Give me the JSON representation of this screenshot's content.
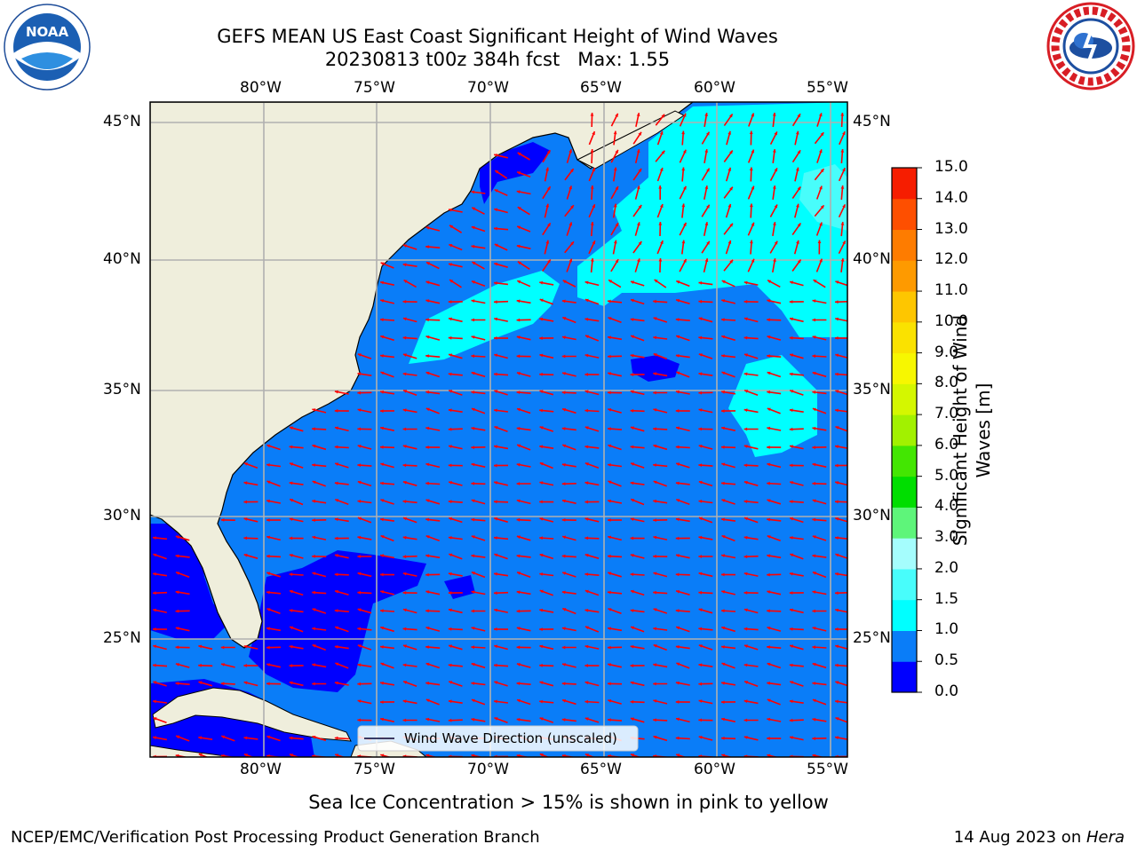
{
  "title": {
    "line1": "GEFS MEAN US East Coast Significant Height of Wind Waves",
    "line2": "20230813 t00z 384h fcst   Max: 1.55"
  },
  "logos": {
    "left": "NOAA",
    "right": "NATIONAL WEATHER SERVICE"
  },
  "map": {
    "lon_ticks": [
      "80°W",
      "75°W",
      "70°W",
      "65°W",
      "60°W",
      "55°W"
    ],
    "lat_ticks": [
      "45°N",
      "40°N",
      "35°N",
      "30°N",
      "25°N"
    ],
    "legend_label": "Wind Wave Direction (unscaled)",
    "colors": {
      "land": "#efeedc",
      "ocean_0_05": "#0000ff",
      "ocean_05_1": "#0a7df8",
      "ocean_1_15": "#00ffff",
      "ocean_15_2": "#48fdfb",
      "arrow": "#ff0000",
      "grid": "#b0b0b0"
    }
  },
  "colorbar": {
    "label_line1": "Significant Height of Wind",
    "label_line2": "Waves [m]",
    "ticks": [
      "0.0",
      "0.5",
      "1.0",
      "1.5",
      "2.0",
      "3.0",
      "4.0",
      "5.0",
      "6.0",
      "7.0",
      "8.0",
      "9.0",
      "10.0",
      "11.0",
      "12.0",
      "13.0",
      "14.0",
      "15.0"
    ],
    "colors": [
      "#0000ff",
      "#0a7df8",
      "#00ffff",
      "#48fdfb",
      "#a5fdfd",
      "#5ef57a",
      "#00de00",
      "#43e602",
      "#a2f100",
      "#d4f700",
      "#f7f700",
      "#fae200",
      "#fec600",
      "#fe9a00",
      "#fe7c00",
      "#fe4f00",
      "#f61d00"
    ]
  },
  "footer": {
    "sea_ice_note": "Sea Ice Concentration > 15% is shown in pink to yellow",
    "branch": "NCEP/EMC/Verification Post Processing Product Generation Branch",
    "date": "14 Aug 2023 on ",
    "machine": "Hera"
  }
}
